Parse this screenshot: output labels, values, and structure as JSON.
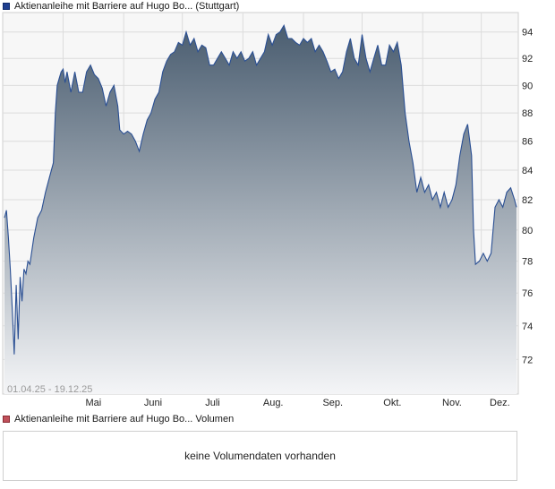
{
  "price_panel": {
    "legend_label": "Aktienanleihe mit Barriere auf Hugo Bo... (Stuttgart)",
    "range_label": "01.04.25 - 19.12.25"
  },
  "volume_panel": {
    "legend_label": "Aktienanleihe mit Barriere auf Hugo Bo... Volumen",
    "empty_message": "keine Volumendaten vorhanden"
  },
  "colors": {
    "line": "#2a4f93",
    "fill_top": "#4a5d70",
    "fill_bottom": "#f4f5f7",
    "grid": "#dcdcdc",
    "panel_bg": "#f7f7f7"
  },
  "chart_data": {
    "type": "area",
    "title": "",
    "xlabel": "",
    "ylabel": "",
    "x_tick_labels": [
      "Mai",
      "Juni",
      "Juli",
      "Aug.",
      "Sep.",
      "Okt.",
      "Nov.",
      "Dez."
    ],
    "y_tick_labels": [
      "72",
      "74",
      "76",
      "78",
      "80",
      "82",
      "84",
      "86",
      "88",
      "90",
      "92",
      "94"
    ],
    "ylim": [
      70,
      95.5
    ],
    "y_scale": "log",
    "grid": true,
    "series": [
      {
        "points": [
          [
            "2025-04-01",
            80.8
          ],
          [
            "2025-04-02",
            81.3
          ],
          [
            "2025-04-03",
            79.5
          ],
          [
            "2025-04-04",
            77.5
          ],
          [
            "2025-04-05",
            75.0
          ],
          [
            "2025-04-06",
            72.3
          ],
          [
            "2025-04-07",
            76.5
          ],
          [
            "2025-04-08",
            73.2
          ],
          [
            "2025-04-09",
            77.0
          ],
          [
            "2025-04-10",
            75.5
          ],
          [
            "2025-04-11",
            77.5
          ],
          [
            "2025-04-12",
            77.2
          ],
          [
            "2025-04-13",
            78.0
          ],
          [
            "2025-04-14",
            77.8
          ],
          [
            "2025-04-16",
            79.5
          ],
          [
            "2025-04-18",
            80.8
          ],
          [
            "2025-04-20",
            81.3
          ],
          [
            "2025-04-22",
            82.5
          ],
          [
            "2025-04-24",
            83.5
          ],
          [
            "2025-04-26",
            84.5
          ],
          [
            "2025-04-27",
            88.0
          ],
          [
            "2025-04-28",
            90.0
          ],
          [
            "2025-04-29",
            90.5
          ],
          [
            "2025-04-30",
            91.0
          ],
          [
            "2025-05-01",
            91.2
          ],
          [
            "2025-05-02",
            90.2
          ],
          [
            "2025-05-03",
            91.0
          ],
          [
            "2025-05-05",
            89.5
          ],
          [
            "2025-05-07",
            91.0
          ],
          [
            "2025-05-09",
            89.5
          ],
          [
            "2025-05-11",
            89.5
          ],
          [
            "2025-05-13",
            91.0
          ],
          [
            "2025-05-15",
            91.5
          ],
          [
            "2025-05-17",
            90.8
          ],
          [
            "2025-05-19",
            90.5
          ],
          [
            "2025-05-21",
            89.8
          ],
          [
            "2025-05-23",
            88.5
          ],
          [
            "2025-05-25",
            89.5
          ],
          [
            "2025-05-27",
            90.0
          ],
          [
            "2025-05-29",
            88.5
          ],
          [
            "2025-05-30",
            86.8
          ],
          [
            "2025-06-01",
            86.5
          ],
          [
            "2025-06-03",
            86.7
          ],
          [
            "2025-06-05",
            86.5
          ],
          [
            "2025-06-07",
            86.0
          ],
          [
            "2025-06-09",
            85.3
          ],
          [
            "2025-06-11",
            86.5
          ],
          [
            "2025-06-13",
            87.5
          ],
          [
            "2025-06-15",
            88.0
          ],
          [
            "2025-06-17",
            89.0
          ],
          [
            "2025-06-19",
            89.5
          ],
          [
            "2025-06-21",
            91.0
          ],
          [
            "2025-06-23",
            91.8
          ],
          [
            "2025-06-25",
            92.3
          ],
          [
            "2025-06-27",
            92.5
          ],
          [
            "2025-06-29",
            93.2
          ],
          [
            "2025-07-01",
            93.0
          ],
          [
            "2025-07-03",
            94.0
          ],
          [
            "2025-07-05",
            93.0
          ],
          [
            "2025-07-07",
            93.5
          ],
          [
            "2025-07-09",
            92.5
          ],
          [
            "2025-07-11",
            93.0
          ],
          [
            "2025-07-13",
            92.8
          ],
          [
            "2025-07-15",
            91.5
          ],
          [
            "2025-07-17",
            91.5
          ],
          [
            "2025-07-19",
            92.0
          ],
          [
            "2025-07-21",
            92.5
          ],
          [
            "2025-07-23",
            92.0
          ],
          [
            "2025-07-25",
            91.5
          ],
          [
            "2025-07-27",
            92.5
          ],
          [
            "2025-07-29",
            92.0
          ],
          [
            "2025-07-31",
            92.5
          ],
          [
            "2025-08-02",
            91.8
          ],
          [
            "2025-08-04",
            92.0
          ],
          [
            "2025-08-06",
            92.5
          ],
          [
            "2025-08-08",
            91.5
          ],
          [
            "2025-08-10",
            92.0
          ],
          [
            "2025-08-12",
            92.5
          ],
          [
            "2025-08-14",
            93.8
          ],
          [
            "2025-08-16",
            93.0
          ],
          [
            "2025-08-18",
            93.8
          ],
          [
            "2025-08-20",
            94.0
          ],
          [
            "2025-08-22",
            94.5
          ],
          [
            "2025-08-24",
            93.5
          ],
          [
            "2025-08-26",
            93.5
          ],
          [
            "2025-08-28",
            93.2
          ],
          [
            "2025-08-30",
            93.0
          ],
          [
            "2025-09-01",
            93.5
          ],
          [
            "2025-09-03",
            93.2
          ],
          [
            "2025-09-05",
            93.5
          ],
          [
            "2025-09-07",
            92.5
          ],
          [
            "2025-09-09",
            93.0
          ],
          [
            "2025-09-11",
            92.5
          ],
          [
            "2025-09-13",
            91.8
          ],
          [
            "2025-09-15",
            91.0
          ],
          [
            "2025-09-17",
            91.2
          ],
          [
            "2025-09-19",
            90.5
          ],
          [
            "2025-09-21",
            91.0
          ],
          [
            "2025-09-23",
            92.5
          ],
          [
            "2025-09-25",
            93.5
          ],
          [
            "2025-09-27",
            92.0
          ],
          [
            "2025-09-29",
            91.5
          ],
          [
            "2025-10-01",
            93.8
          ],
          [
            "2025-10-03",
            92.0
          ],
          [
            "2025-10-05",
            91.0
          ],
          [
            "2025-10-07",
            92.0
          ],
          [
            "2025-10-09",
            93.0
          ],
          [
            "2025-10-11",
            91.5
          ],
          [
            "2025-10-13",
            91.5
          ],
          [
            "2025-10-15",
            93.0
          ],
          [
            "2025-10-17",
            92.5
          ],
          [
            "2025-10-19",
            93.2
          ],
          [
            "2025-10-21",
            91.5
          ],
          [
            "2025-10-23",
            88.0
          ],
          [
            "2025-10-25",
            86.0
          ],
          [
            "2025-10-27",
            84.5
          ],
          [
            "2025-10-29",
            82.5
          ],
          [
            "2025-10-31",
            83.5
          ],
          [
            "2025-11-02",
            82.5
          ],
          [
            "2025-11-04",
            83.0
          ],
          [
            "2025-11-06",
            82.0
          ],
          [
            "2025-11-08",
            82.5
          ],
          [
            "2025-11-10",
            81.5
          ],
          [
            "2025-11-12",
            82.5
          ],
          [
            "2025-11-14",
            81.5
          ],
          [
            "2025-11-16",
            82.0
          ],
          [
            "2025-11-18",
            83.0
          ],
          [
            "2025-11-20",
            85.0
          ],
          [
            "2025-11-22",
            86.5
          ],
          [
            "2025-11-24",
            87.2
          ],
          [
            "2025-11-26",
            85.0
          ],
          [
            "2025-11-27",
            80.0
          ],
          [
            "2025-11-28",
            77.8
          ],
          [
            "2025-11-30",
            78.0
          ],
          [
            "2025-12-02",
            78.5
          ],
          [
            "2025-12-04",
            78.0
          ],
          [
            "2025-12-06",
            78.5
          ],
          [
            "2025-12-08",
            81.5
          ],
          [
            "2025-12-10",
            82.0
          ],
          [
            "2025-12-12",
            81.5
          ],
          [
            "2025-12-14",
            82.5
          ],
          [
            "2025-12-16",
            82.8
          ],
          [
            "2025-12-18",
            82.0
          ],
          [
            "2025-12-19",
            81.5
          ]
        ]
      }
    ]
  }
}
